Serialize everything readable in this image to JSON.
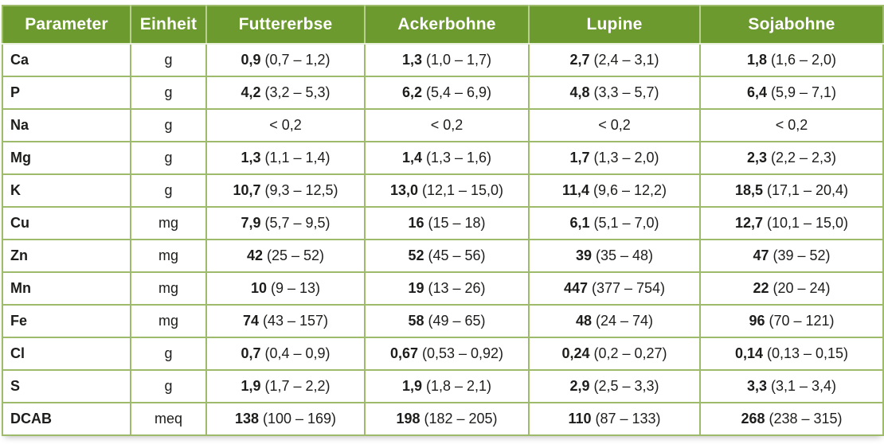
{
  "colors": {
    "header_bg": "#6c9a2f",
    "header_text": "#ffffff",
    "border": "#9eba6b",
    "header_sep": "#b9cf8f",
    "text": "#1d1d1b"
  },
  "table": {
    "columns": [
      "Parameter",
      "Einheit",
      "Futtererbse",
      "Ackerbohne",
      "Lupine",
      "Sojabohne"
    ],
    "rows": [
      {
        "parameter": "Ca",
        "einheit": "g",
        "cells": [
          {
            "b": "0,9",
            "r": "(0,7 – 1,2)"
          },
          {
            "b": "1,3",
            "r": "(1,0 – 1,7)"
          },
          {
            "b": "2,7",
            "r": "(2,4 – 3,1)"
          },
          {
            "b": "1,8",
            "r": "(1,6 – 2,0)"
          }
        ]
      },
      {
        "parameter": "P",
        "einheit": "g",
        "cells": [
          {
            "b": "4,2",
            "r": "(3,2 – 5,3)"
          },
          {
            "b": "6,2",
            "r": "(5,4 – 6,9)"
          },
          {
            "b": "4,8",
            "r": "(3,3 – 5,7)"
          },
          {
            "b": "6,4",
            "r": "(5,9 – 7,1)"
          }
        ]
      },
      {
        "parameter": "Na",
        "einheit": "g",
        "cells": [
          {
            "b": "",
            "r": "< 0,2"
          },
          {
            "b": "",
            "r": "< 0,2"
          },
          {
            "b": "",
            "r": "< 0,2"
          },
          {
            "b": "",
            "r": "< 0,2"
          }
        ]
      },
      {
        "parameter": "Mg",
        "einheit": "g",
        "cells": [
          {
            "b": "1,3",
            "r": "(1,1 – 1,4)"
          },
          {
            "b": "1,4",
            "r": "(1,3 – 1,6)"
          },
          {
            "b": "1,7",
            "r": "(1,3 – 2,0)"
          },
          {
            "b": "2,3",
            "r": "(2,2 – 2,3)"
          }
        ]
      },
      {
        "parameter": "K",
        "einheit": "g",
        "cells": [
          {
            "b": "10,7",
            "r": "(9,3 – 12,5)"
          },
          {
            "b": "13,0",
            "r": "(12,1 – 15,0)"
          },
          {
            "b": "11,4",
            "r": "(9,6 – 12,2)"
          },
          {
            "b": "18,5",
            "r": "(17,1 – 20,4)"
          }
        ]
      },
      {
        "parameter": "Cu",
        "einheit": "mg",
        "cells": [
          {
            "b": "7,9",
            "r": "(5,7 – 9,5)"
          },
          {
            "b": "16",
            "r": "(15 – 18)"
          },
          {
            "b": "6,1",
            "r": "(5,1 – 7,0)"
          },
          {
            "b": "12,7",
            "r": "(10,1 – 15,0)"
          }
        ]
      },
      {
        "parameter": "Zn",
        "einheit": "mg",
        "cells": [
          {
            "b": "42",
            "r": "(25 – 52)"
          },
          {
            "b": "52",
            "r": "(45 – 56)"
          },
          {
            "b": "39",
            "r": "(35 – 48)"
          },
          {
            "b": "47",
            "r": "(39 – 52)"
          }
        ]
      },
      {
        "parameter": "Mn",
        "einheit": "mg",
        "cells": [
          {
            "b": "10",
            "r": "(9 – 13)"
          },
          {
            "b": "19",
            "r": "(13 – 26)"
          },
          {
            "b": "447",
            "r": "(377 – 754)"
          },
          {
            "b": "22",
            "r": "(20 – 24)"
          }
        ]
      },
      {
        "parameter": "Fe",
        "einheit": "mg",
        "cells": [
          {
            "b": "74",
            "r": "(43 – 157)"
          },
          {
            "b": "58",
            "r": "(49 – 65)"
          },
          {
            "b": "48",
            "r": "(24 – 74)"
          },
          {
            "b": "96",
            "r": "(70 – 121)"
          }
        ]
      },
      {
        "parameter": "Cl",
        "einheit": "g",
        "cells": [
          {
            "b": "0,7",
            "r": "(0,4 – 0,9)"
          },
          {
            "b": "0,67",
            "r": "(0,53 – 0,92)"
          },
          {
            "b": "0,24",
            "r": "(0,2 – 0,27)"
          },
          {
            "b": "0,14",
            "r": "(0,13 – 0,15)"
          }
        ]
      },
      {
        "parameter": "S",
        "einheit": "g",
        "cells": [
          {
            "b": "1,9",
            "r": "(1,7 – 2,2)"
          },
          {
            "b": "1,9",
            "r": "(1,8 – 2,1)"
          },
          {
            "b": "2,9",
            "r": "(2,5 – 3,3)"
          },
          {
            "b": "3,3",
            "r": "(3,1 – 3,4)"
          }
        ]
      },
      {
        "parameter": "DCAB",
        "einheit": "meq",
        "cells": [
          {
            "b": "138",
            "r": "(100 – 169)"
          },
          {
            "b": "198",
            "r": "(182 – 205)"
          },
          {
            "b": "110",
            "r": "(87 – 133)"
          },
          {
            "b": "268",
            "r": "(238 – 315)"
          }
        ]
      }
    ]
  },
  "chart_data": {
    "type": "table",
    "columns": [
      "Parameter",
      "Einheit",
      "Futtererbse",
      "Ackerbohne",
      "Lupine",
      "Sojabohne"
    ],
    "rows": [
      [
        "Ca",
        "g",
        "0,9 (0,7 – 1,2)",
        "1,3 (1,0 – 1,7)",
        "2,7 (2,4 – 3,1)",
        "1,8 (1,6 – 2,0)"
      ],
      [
        "P",
        "g",
        "4,2 (3,2 – 5,3)",
        "6,2 (5,4 – 6,9)",
        "4,8 (3,3 – 5,7)",
        "6,4 (5,9 – 7,1)"
      ],
      [
        "Na",
        "g",
        "< 0,2",
        "< 0,2",
        "< 0,2",
        "< 0,2"
      ],
      [
        "Mg",
        "g",
        "1,3 (1,1 – 1,4)",
        "1,4 (1,3 – 1,6)",
        "1,7 (1,3 – 2,0)",
        "2,3 (2,2 – 2,3)"
      ],
      [
        "K",
        "g",
        "10,7 (9,3 – 12,5)",
        "13,0 (12,1 – 15,0)",
        "11,4 (9,6 – 12,2)",
        "18,5 (17,1 – 20,4)"
      ],
      [
        "Cu",
        "mg",
        "7,9 (5,7 – 9,5)",
        "16 (15 – 18)",
        "6,1 (5,1 – 7,0)",
        "12,7 (10,1 – 15,0)"
      ],
      [
        "Zn",
        "mg",
        "42 (25 – 52)",
        "52 (45 – 56)",
        "39 (35 – 48)",
        "47 (39 – 52)"
      ],
      [
        "Mn",
        "mg",
        "10 (9 – 13)",
        "19 (13 – 26)",
        "447 (377 – 754)",
        "22 (20 – 24)"
      ],
      [
        "Fe",
        "mg",
        "74 (43 – 157)",
        "58 (49 – 65)",
        "48 (24 – 74)",
        "96 (70 – 121)"
      ],
      [
        "Cl",
        "g",
        "0,7 (0,4 – 0,9)",
        "0,67 (0,53 – 0,92)",
        "0,24 (0,2 – 0,27)",
        "0,14 (0,13 – 0,15)"
      ],
      [
        "S",
        "g",
        "1,9 (1,7 – 2,2)",
        "1,9 (1,8 – 2,1)",
        "2,9 (2,5 – 3,3)",
        "3,3 (3,1 – 3,4)"
      ],
      [
        "DCAB",
        "meq",
        "138 (100 – 169)",
        "198 (182 – 205)",
        "110 (87 – 133)",
        "268 (238 – 315)"
      ]
    ]
  }
}
